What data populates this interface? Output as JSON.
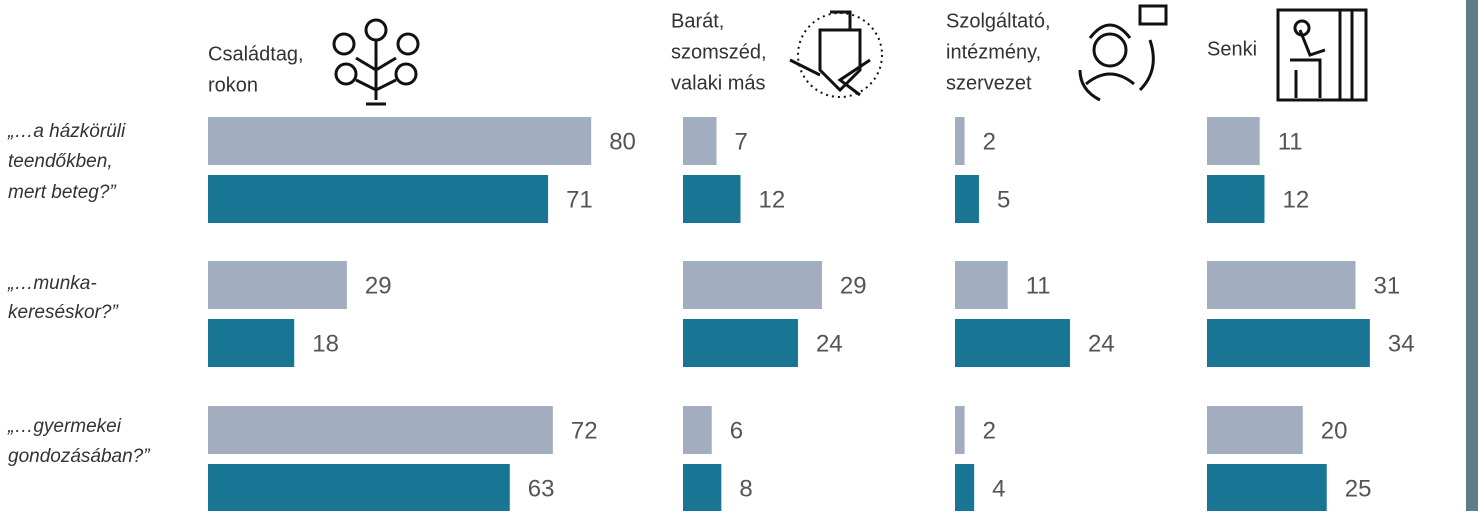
{
  "chart_data": {
    "type": "bar",
    "categories": [
      [
        "„…a házkörüli",
        "teendőkben,",
        "mert beteg?”"
      ],
      [
        "„…munka-",
        "kereséskor?”"
      ],
      [
        "„…gyermekei",
        "gondozásában?”"
      ]
    ],
    "xlim": [
      0,
      100
    ],
    "panels": [
      {
        "title": [
          "Családtag,",
          "rokon"
        ],
        "series": [
          {
            "color": "#a2aec0",
            "values": [
              80,
              29,
              72
            ]
          },
          {
            "color": "#187594",
            "values": [
              71,
              18,
              63
            ]
          }
        ]
      },
      {
        "title": [
          "Barát,",
          "szomszéd,",
          "valaki más"
        ],
        "series": [
          {
            "color": "#a2aec0",
            "values": [
              7,
              29,
              6
            ]
          },
          {
            "color": "#187594",
            "values": [
              12,
              24,
              8
            ]
          }
        ]
      },
      {
        "title": [
          "Szolgáltató,",
          "intézmény,",
          "szervezet"
        ],
        "series": [
          {
            "color": "#a2aec0",
            "values": [
              2,
              11,
              2
            ]
          },
          {
            "color": "#187594",
            "values": [
              5,
              24,
              4
            ]
          }
        ]
      },
      {
        "title": [
          "Senki"
        ],
        "series": [
          {
            "color": "#a2aec0",
            "values": [
              11,
              31,
              20
            ]
          },
          {
            "color": "#187594",
            "values": [
              12,
              34,
              25
            ]
          }
        ]
      }
    ]
  }
}
